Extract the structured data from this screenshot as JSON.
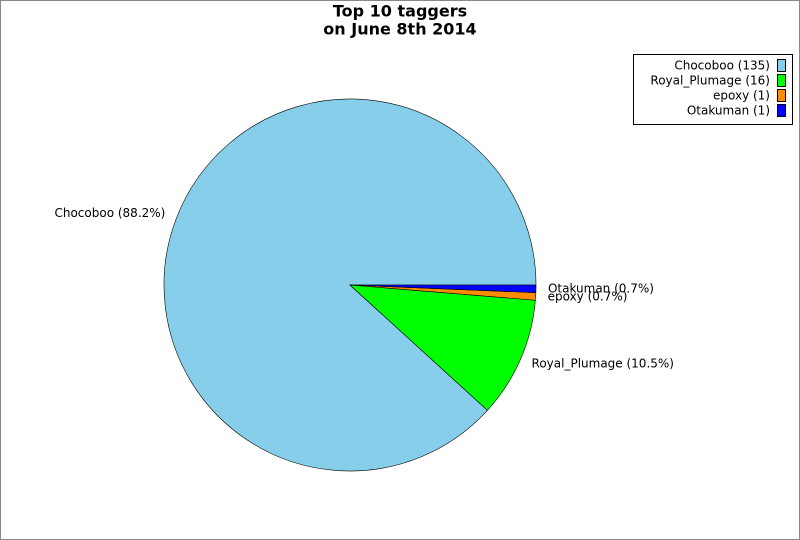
{
  "chart_data": {
    "type": "pie",
    "title": [
      "Top 10 taggers",
      "on June 8th 2014"
    ],
    "values": [
      135,
      16,
      1,
      1
    ],
    "legend_labels": [
      "Chocoboo (135)",
      "Royal_Plumage (16)",
      "epoxy (1)",
      "Otakuman (1)"
    ],
    "slice_labels": [
      "Chocoboo (88.2%)",
      "Royal_Plumage (10.5%)",
      "epoxy (0.7%)",
      "Otakuman (0.7%)"
    ],
    "colors": [
      "#87ceeb",
      "#00ff00",
      "#ff8c00",
      "#0000ff"
    ],
    "legend": "upper right"
  }
}
